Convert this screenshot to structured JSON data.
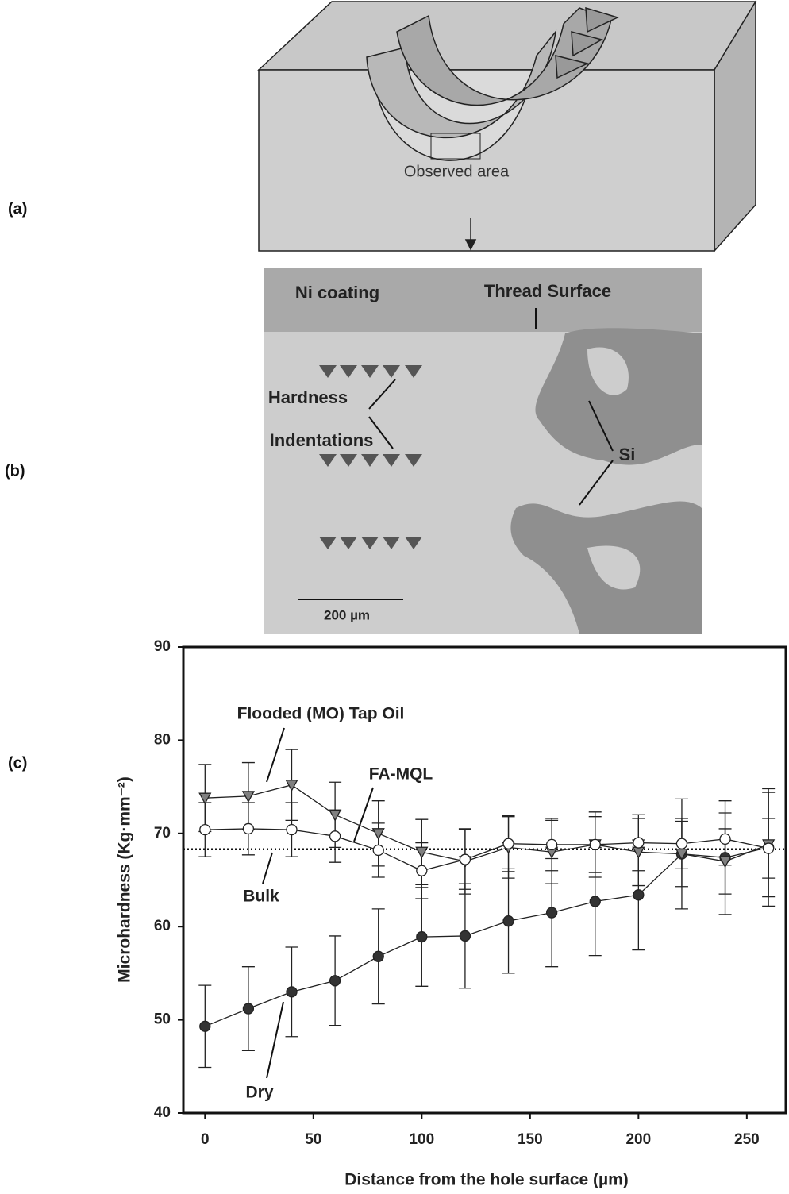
{
  "panels": {
    "a": "(a)",
    "b": "(b)",
    "c": "(c)"
  },
  "diagram": {
    "observed_area": "Observed area"
  },
  "micrograph": {
    "ni_coating": "Ni coating",
    "thread_surface": "Thread Surface",
    "hardness": "Hardness",
    "indentations": "Indentations",
    "si": "Si",
    "scale_bar": "200 µm"
  },
  "chart_data": {
    "type": "line",
    "x_label": "Distance from the hole surface (µm)",
    "y_label": "Microhardness (Kg·mm⁻²)",
    "x": [
      0,
      20,
      40,
      60,
      80,
      100,
      120,
      140,
      160,
      180,
      200,
      220,
      240,
      260
    ],
    "series": [
      {
        "name": "Dry",
        "color": "#333333",
        "marker": "filled-circle",
        "values": [
          49.3,
          51.2,
          53.0,
          54.2,
          56.8,
          58.9,
          59.0,
          60.6,
          61.5,
          62.7,
          63.4,
          67.8,
          67.4,
          68.5
        ],
        "errors": [
          4.4,
          4.5,
          4.8,
          4.8,
          5.1,
          5.3,
          5.6,
          5.6,
          5.8,
          5.8,
          5.9,
          5.9,
          6.1,
          6.3
        ]
      },
      {
        "name": "Flooded (MO) Tap Oil",
        "color": "#808080",
        "marker": "triangle-down",
        "values": [
          73.8,
          74.0,
          75.2,
          72.0,
          70.0,
          68.0,
          67.0,
          68.5,
          68.0,
          68.8,
          68.0,
          67.8,
          67.0,
          68.8
        ],
        "errors": [
          3.6,
          3.6,
          3.8,
          3.5,
          3.5,
          3.5,
          3.5,
          3.3,
          3.4,
          3.5,
          3.6,
          3.5,
          3.5,
          5.6
        ]
      },
      {
        "name": "FA-MQL",
        "color": "#ffffff",
        "marker": "open-circle",
        "values": [
          70.4,
          70.5,
          70.4,
          69.7,
          68.2,
          66.0,
          67.2,
          68.9,
          68.8,
          68.8,
          69.0,
          68.9,
          69.4,
          68.4
        ],
        "errors": [
          2.9,
          2.8,
          2.9,
          2.8,
          2.9,
          3.0,
          3.2,
          3.0,
          2.8,
          3.0,
          3.0,
          2.7,
          2.8,
          3.2
        ]
      }
    ],
    "reference_line": {
      "name": "Bulk",
      "value": 68.3
    },
    "xlim": [
      -10,
      268
    ],
    "xticks": [
      0,
      50,
      100,
      150,
      200,
      250
    ],
    "ylim": [
      40,
      90
    ],
    "yticks": [
      40,
      50,
      60,
      70,
      80,
      90
    ],
    "grid": false,
    "legend": "annotations"
  }
}
